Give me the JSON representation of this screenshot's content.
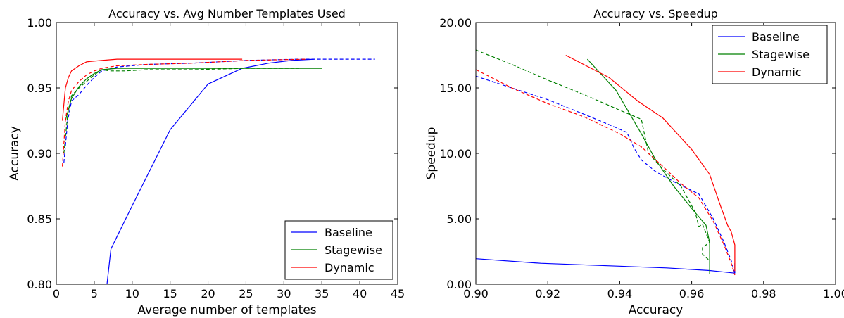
{
  "chart_data": [
    {
      "type": "line",
      "title": "Accuracy vs. Avg Number Templates Used",
      "xlabel": "Average number of templates",
      "ylabel": "Accuracy",
      "xlim": [
        0,
        45
      ],
      "ylim": [
        0.8,
        1.0
      ],
      "xticks": [
        "0",
        "5",
        "10",
        "15",
        "20",
        "25",
        "30",
        "35",
        "40",
        "45"
      ],
      "yticks": [
        "0.80",
        "0.85",
        "0.90",
        "0.95",
        "1.00"
      ],
      "grid": false,
      "legend": {
        "position": "lower-right",
        "entries": [
          "Baseline",
          "Stagewise",
          "Dynamic"
        ]
      },
      "series": [
        {
          "name": "Baseline",
          "color": "#0000ff",
          "style": "solid",
          "x": [
            6.2,
            7.2,
            10,
            15,
            20,
            24.5,
            28,
            31,
            34
          ],
          "y": [
            0.775,
            0.827,
            0.86,
            0.918,
            0.953,
            0.965,
            0.969,
            0.971,
            0.972
          ]
        },
        {
          "name": "Baseline",
          "color": "#0000ff",
          "style": "dashed",
          "x": [
            1,
            1.5,
            2,
            3,
            4,
            5,
            6,
            8,
            12,
            18,
            25,
            32,
            42
          ],
          "y": [
            0.893,
            0.925,
            0.94,
            0.945,
            0.952,
            0.958,
            0.963,
            0.966,
            0.968,
            0.969,
            0.971,
            0.972,
            0.972
          ]
        },
        {
          "name": "Stagewise",
          "color": "#008000",
          "style": "solid",
          "x": [
            1.2,
            2,
            3,
            4,
            5,
            6,
            8,
            12,
            20,
            28,
            35
          ],
          "y": [
            0.925,
            0.942,
            0.951,
            0.957,
            0.961,
            0.964,
            0.965,
            0.965,
            0.965,
            0.965,
            0.965
          ]
        },
        {
          "name": "Stagewise",
          "color": "#008000",
          "style": "dashed",
          "x": [
            1,
            1.5,
            2,
            3,
            4,
            5,
            6,
            7,
            9,
            12,
            18,
            25,
            32
          ],
          "y": [
            0.9,
            0.93,
            0.944,
            0.95,
            0.955,
            0.96,
            0.964,
            0.963,
            0.963,
            0.964,
            0.964,
            0.965,
            0.965
          ]
        },
        {
          "name": "Dynamic",
          "color": "#ff0000",
          "style": "solid",
          "x": [
            0.8,
            1.2,
            1.6,
            2,
            3,
            4,
            6,
            8,
            12,
            18,
            24.5
          ],
          "y": [
            0.925,
            0.95,
            0.958,
            0.963,
            0.967,
            0.97,
            0.971,
            0.972,
            0.972,
            0.972,
            0.972
          ]
        },
        {
          "name": "Dynamic",
          "color": "#ff0000",
          "style": "dashed",
          "x": [
            0.8,
            1.2,
            1.6,
            2,
            3,
            4,
            5,
            6,
            8,
            12,
            18,
            25,
            33
          ],
          "y": [
            0.89,
            0.925,
            0.94,
            0.948,
            0.955,
            0.96,
            0.963,
            0.965,
            0.967,
            0.968,
            0.969,
            0.971,
            0.972
          ]
        }
      ]
    },
    {
      "type": "line",
      "title": "Accuracy vs. Speedup",
      "xlabel": "Accuracy",
      "ylabel": "Speedup",
      "xlim": [
        0.9,
        1.0
      ],
      "ylim": [
        0,
        20
      ],
      "xticks": [
        "0.90",
        "0.92",
        "0.94",
        "0.96",
        "0.98",
        "1.00"
      ],
      "yticks": [
        "0.00",
        "5.00",
        "10.00",
        "15.00",
        "20.00"
      ],
      "grid": false,
      "legend": {
        "position": "top-right",
        "entries": [
          "Baseline",
          "Stagewise",
          "Dynamic"
        ]
      },
      "series": [
        {
          "name": "Baseline",
          "color": "#0000ff",
          "style": "solid",
          "x": [
            0.9,
            0.918,
            0.953,
            0.965,
            0.972,
            0.972
          ],
          "y": [
            1.95,
            1.6,
            1.25,
            1.05,
            0.85,
            1.6
          ]
        },
        {
          "name": "Baseline",
          "color": "#0000ff",
          "style": "dashed",
          "x": [
            0.9,
            0.92,
            0.93,
            0.937,
            0.942,
            0.944,
            0.946,
            0.95,
            0.956,
            0.962,
            0.966,
            0.969,
            0.971,
            0.972
          ],
          "y": [
            15.9,
            14.1,
            13.0,
            12.2,
            11.6,
            10.4,
            9.5,
            8.6,
            7.7,
            6.9,
            5.0,
            3.2,
            1.8,
            0.8
          ]
        },
        {
          "name": "Stagewise",
          "color": "#008000",
          "style": "solid",
          "x": [
            0.931,
            0.939,
            0.946,
            0.95,
            0.955,
            0.96,
            0.964,
            0.965,
            0.965
          ],
          "y": [
            17.2,
            14.8,
            11.5,
            9.5,
            7.5,
            5.8,
            4.5,
            3.2,
            0.8
          ]
        },
        {
          "name": "Stagewise",
          "color": "#008000",
          "style": "dashed",
          "x": [
            0.9,
            0.91,
            0.92,
            0.93,
            0.94,
            0.946,
            0.948,
            0.952,
            0.957,
            0.961,
            0.962,
            0.963,
            0.965,
            0.963,
            0.963,
            0.965,
            0.965
          ],
          "y": [
            17.9,
            16.8,
            15.6,
            14.5,
            13.3,
            12.6,
            10.0,
            8.8,
            7.5,
            5.5,
            4.4,
            4.6,
            3.2,
            2.8,
            2.3,
            1.8,
            0.8
          ]
        },
        {
          "name": "Dynamic",
          "color": "#ff0000",
          "style": "solid",
          "x": [
            0.925,
            0.937,
            0.945,
            0.952,
            0.96,
            0.965,
            0.968,
            0.97,
            0.971,
            0.972,
            0.972
          ],
          "y": [
            17.5,
            15.8,
            14.0,
            12.7,
            10.3,
            8.4,
            6.0,
            4.5,
            4.0,
            3.0,
            1.0
          ]
        },
        {
          "name": "Dynamic",
          "color": "#ff0000",
          "style": "dashed",
          "x": [
            0.9,
            0.91,
            0.92,
            0.93,
            0.94,
            0.946,
            0.952,
            0.957,
            0.962,
            0.966,
            0.969,
            0.971,
            0.972
          ],
          "y": [
            16.4,
            15.0,
            13.8,
            12.8,
            11.5,
            10.5,
            9.0,
            7.7,
            6.6,
            4.8,
            3.0,
            1.6,
            0.7
          ]
        }
      ]
    }
  ]
}
